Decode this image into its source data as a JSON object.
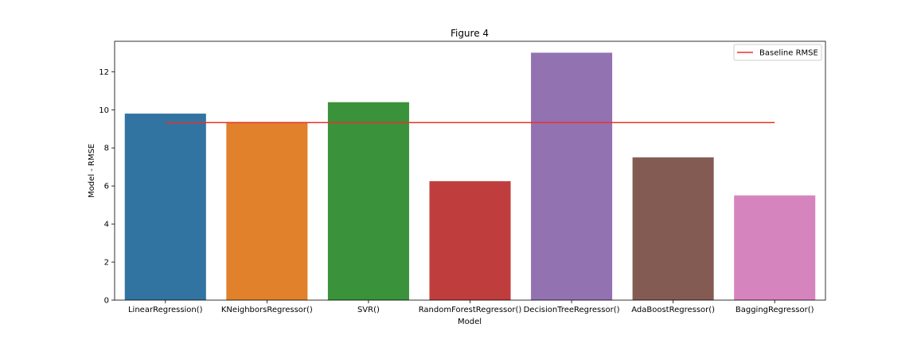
{
  "chart_data": {
    "type": "bar",
    "title": "Figure 4",
    "xlabel": "Model",
    "ylabel": "Model - RMSE",
    "categories": [
      "LinearRegression()",
      "KNeighborsRegressor()",
      "SVR()",
      "RandomForestRegressor()",
      "DecisionTreeRegressor()",
      "AdaBoostRegressor()",
      "BaggingRegressor()"
    ],
    "values": [
      9.8,
      9.35,
      10.4,
      6.25,
      13.0,
      7.5,
      5.5
    ],
    "colors": [
      "#3274a1",
      "#e1812c",
      "#3a923a",
      "#c03d3e",
      "#9372b2",
      "#845b53",
      "#d684bd"
    ],
    "ylim": [
      0,
      13.6
    ],
    "yticks": [
      0,
      2,
      4,
      6,
      8,
      10,
      12
    ],
    "baseline": {
      "name": "Baseline RMSE",
      "value": 9.33,
      "color": "#e8312a"
    },
    "legend_position": "top-right",
    "grid": false
  }
}
